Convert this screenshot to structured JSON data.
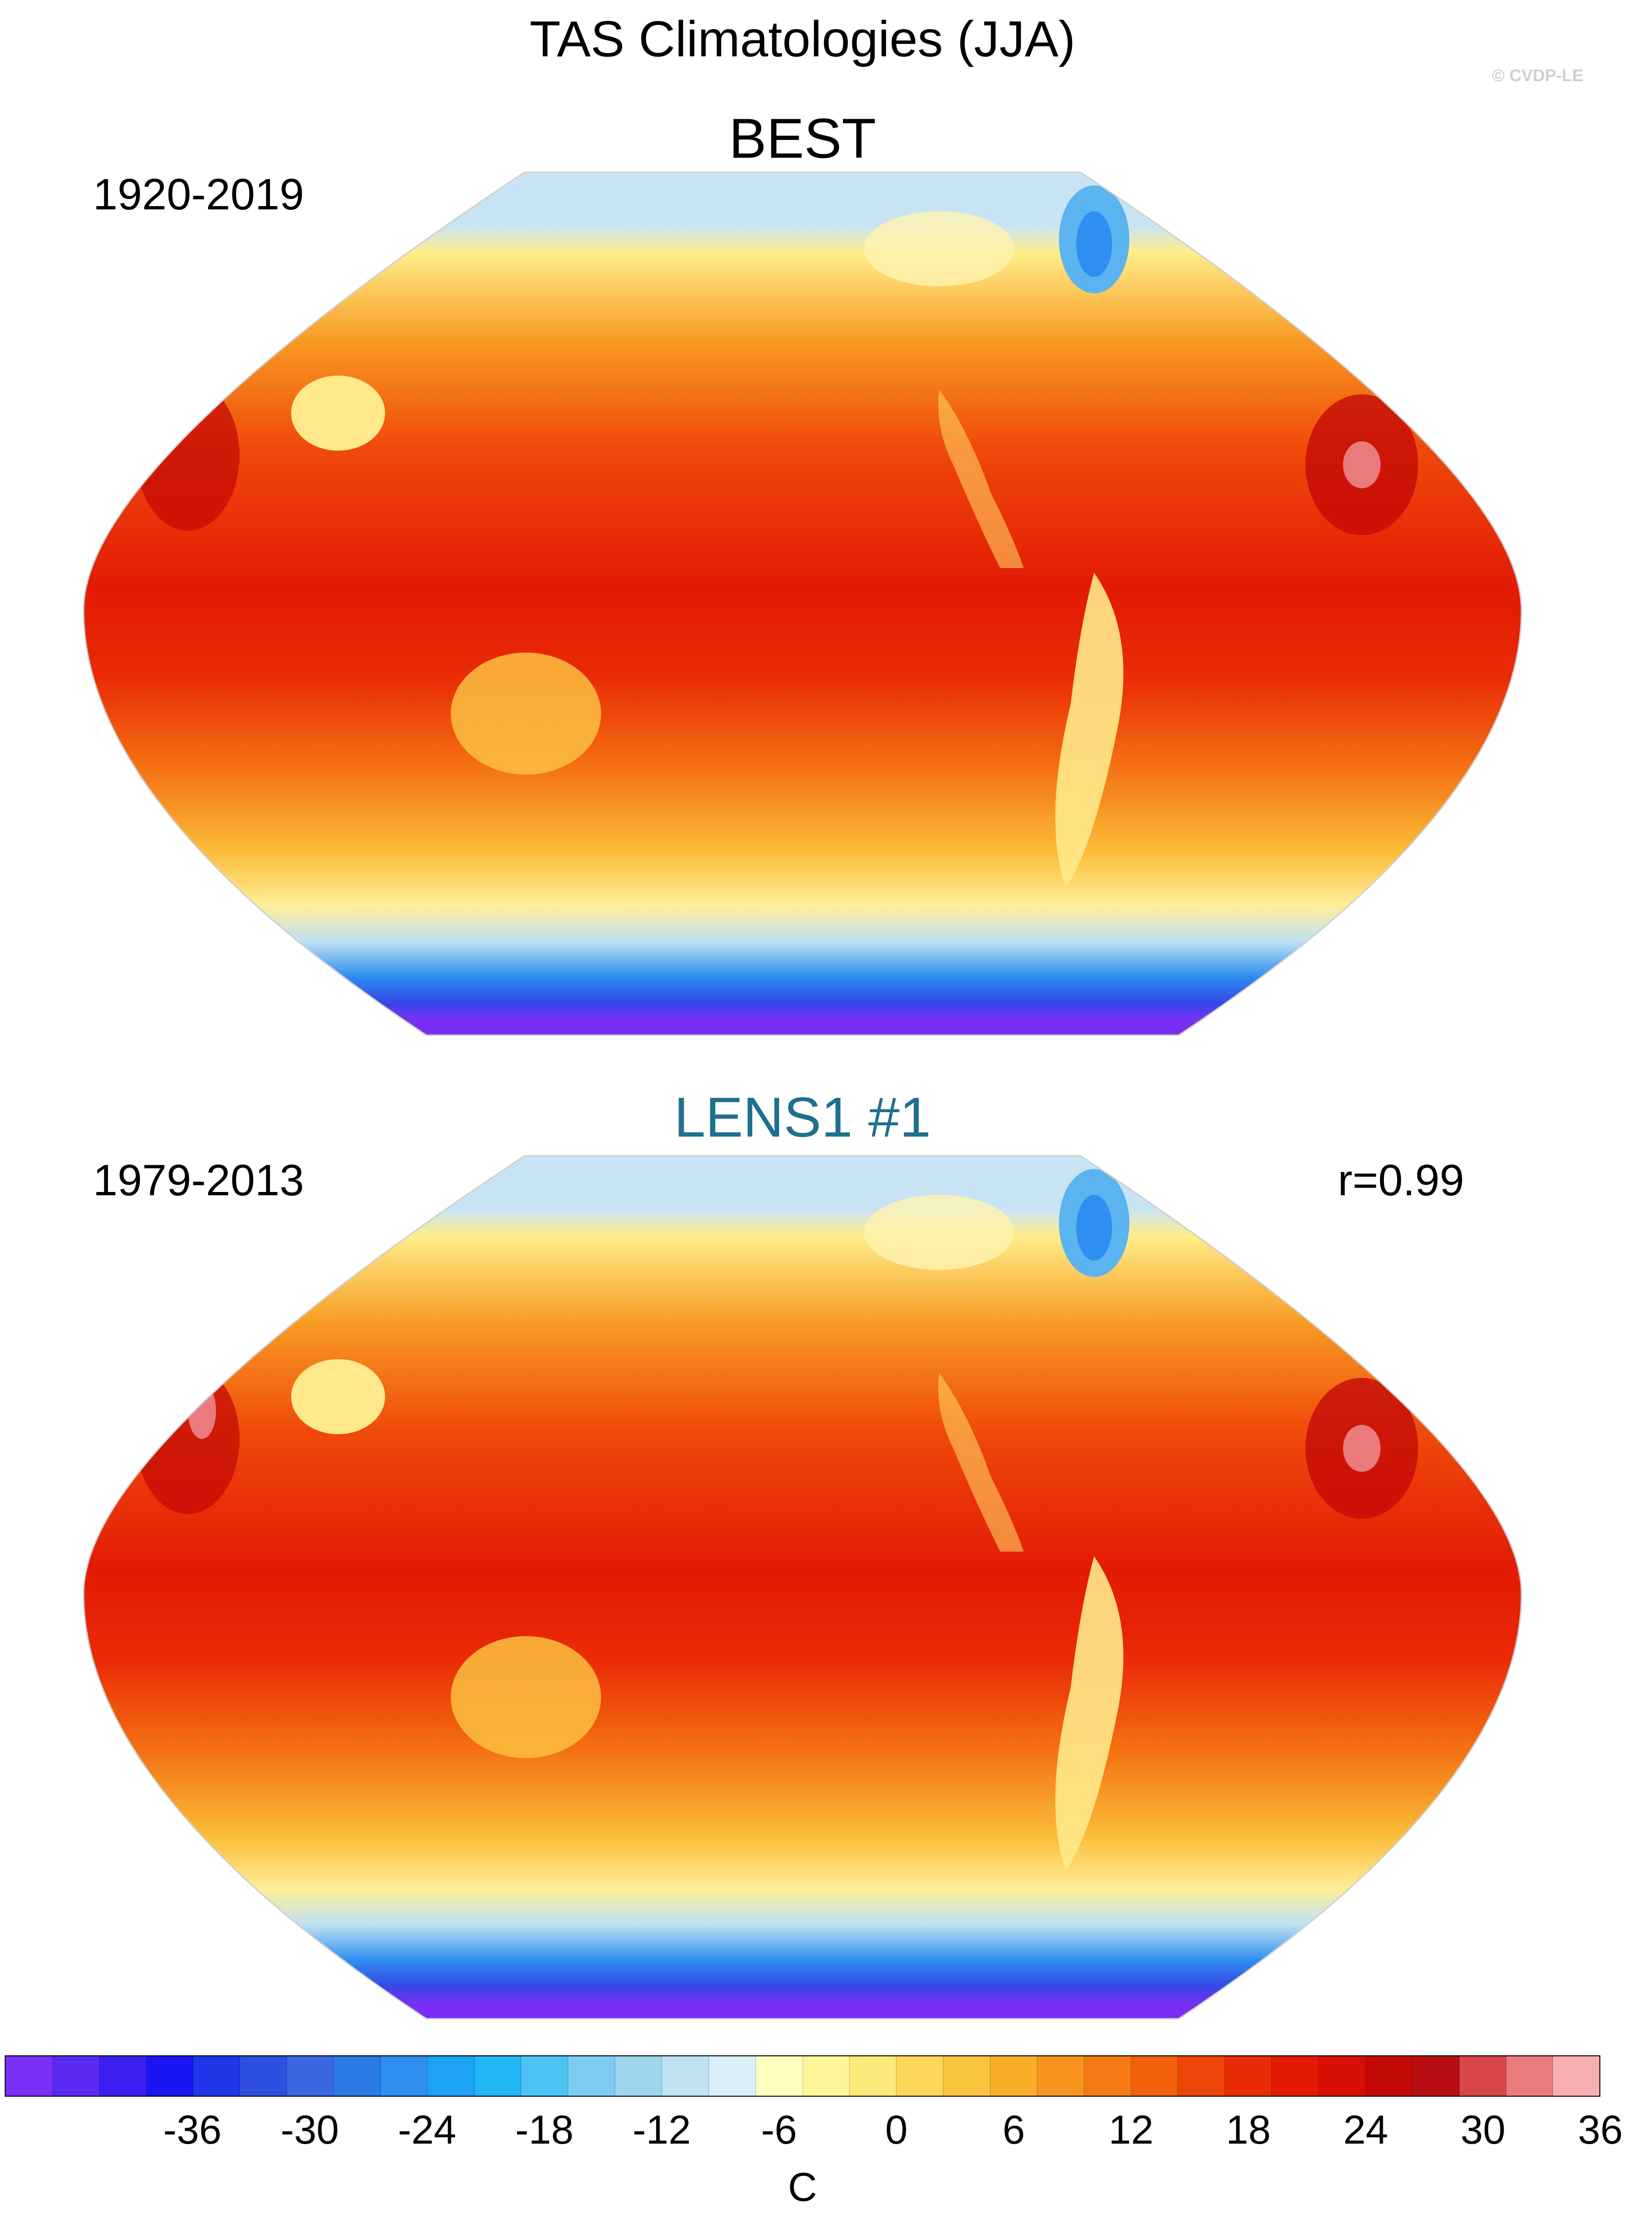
{
  "title": "TAS Climatologies (JJA)",
  "copyright": "© CVDP-LE",
  "panels": [
    {
      "title": "BEST",
      "period": "1920-2019",
      "stat": ""
    },
    {
      "title": "LENS1 #1",
      "period": "1979-2013",
      "stat": "r=0.99"
    }
  ],
  "colorbar": {
    "unit": "C",
    "ticks": [
      "-36",
      "-30",
      "-24",
      "-18",
      "-12",
      "-6",
      "0",
      "6",
      "12",
      "18",
      "24",
      "30",
      "36"
    ],
    "colors": [
      "#7b2ef5",
      "#5a2af2",
      "#3a1ff0",
      "#1a14f0",
      "#1f35e8",
      "#2f4fe0",
      "#3b66e2",
      "#2b7be6",
      "#2d8ff0",
      "#1da3f3",
      "#22b6f6",
      "#4dc3f5",
      "#7ccdf0",
      "#9fd6ee",
      "#bfe3f3",
      "#d9eef7",
      "#ffffc0",
      "#fff69a",
      "#fde87a",
      "#fcd75a",
      "#fbc43e",
      "#f9ad28",
      "#f7931e",
      "#f57a14",
      "#f2600c",
      "#ee4508",
      "#ea2c06",
      "#e41a04",
      "#d80f04",
      "#c40a06",
      "#b60d12",
      "#d9464a",
      "#ea7a7c",
      "#f6aeb2"
    ]
  },
  "colors": {
    "panel_title_reference": "#000000",
    "panel_title_model": "#1f6f8f"
  }
}
